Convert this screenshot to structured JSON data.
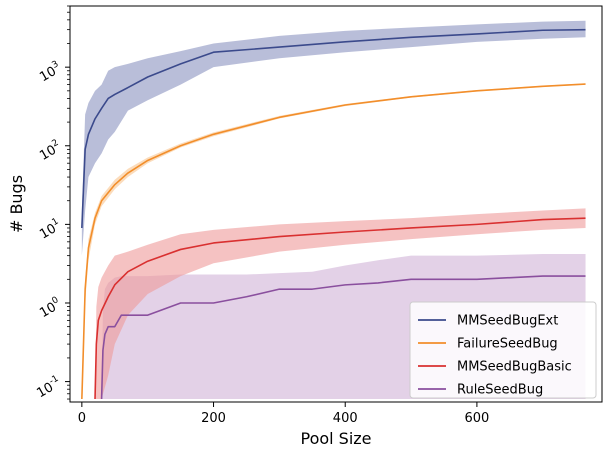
{
  "chart_data": {
    "type": "line",
    "xlabel": "Pool Size",
    "ylabel": "# Bugs",
    "xlim": [
      -18,
      790
    ],
    "ylim": [
      0.055,
      6000
    ],
    "yscale": "log",
    "x_ticks": [
      0,
      200,
      400,
      600
    ],
    "y_ticks": [
      {
        "base": "10",
        "exp": "-1",
        "value": 0.1
      },
      {
        "base": "10",
        "exp": "0",
        "value": 1
      },
      {
        "base": "10",
        "exp": "1",
        "value": 10
      },
      {
        "base": "10",
        "exp": "2",
        "value": 100
      },
      {
        "base": "10",
        "exp": "3",
        "value": 1000
      }
    ],
    "grid": false,
    "legend_position": "lower-right",
    "series": [
      {
        "name": "MMSeedBugExt",
        "color": "#3b4a8c",
        "band_color": "#8a93c0",
        "x": [
          0,
          5,
          10,
          20,
          30,
          40,
          50,
          70,
          100,
          150,
          200,
          300,
          400,
          500,
          600,
          700,
          765
        ],
        "y": [
          9,
          90,
          140,
          220,
          300,
          400,
          450,
          550,
          750,
          1100,
          1550,
          1800,
          2100,
          2400,
          2650,
          2950,
          3000
        ],
        "lower": [
          4,
          15,
          40,
          60,
          80,
          120,
          150,
          280,
          380,
          600,
          1000,
          1300,
          1550,
          1800,
          2100,
          2300,
          2400
        ],
        "upper": [
          15,
          250,
          350,
          500,
          600,
          900,
          1000,
          1100,
          1300,
          1600,
          2000,
          2500,
          2900,
          3200,
          3500,
          3800,
          3900
        ]
      },
      {
        "name": "FailureSeedBug",
        "color": "#f28e2b",
        "band_color": "#f8c48f",
        "x": [
          0,
          5,
          10,
          20,
          30,
          50,
          70,
          100,
          150,
          200,
          300,
          400,
          500,
          600,
          700,
          765
        ],
        "y": [
          0.06,
          1.5,
          5,
          12,
          20,
          32,
          45,
          65,
          100,
          140,
          230,
          330,
          420,
          500,
          570,
          610
        ],
        "lower": [
          0.06,
          1,
          3.5,
          10,
          17,
          28,
          40,
          60,
          95,
          132,
          222,
          320,
          410,
          490,
          560,
          600
        ],
        "upper": [
          0.06,
          2,
          6.5,
          14,
          23,
          37,
          51,
          71,
          107,
          148,
          240,
          340,
          430,
          512,
          582,
          622
        ]
      },
      {
        "name": "MMSeedBugBasic",
        "color": "#d93030",
        "band_color": "#ee9a9a",
        "x": [
          20,
          22,
          25,
          30,
          40,
          50,
          70,
          100,
          150,
          200,
          300,
          400,
          500,
          600,
          700,
          765
        ],
        "y": [
          0.06,
          0.3,
          0.6,
          0.8,
          1.2,
          1.7,
          2.5,
          3.4,
          4.8,
          5.8,
          7,
          8,
          9,
          10,
          11.5,
          12
        ],
        "lower": [
          0.06,
          0.06,
          0.06,
          0.06,
          0.12,
          0.3,
          0.7,
          1.3,
          2.2,
          3.2,
          4.5,
          5.5,
          6.5,
          7.5,
          8.5,
          9
        ],
        "upper": [
          0.06,
          0.9,
          1.6,
          2.1,
          3,
          4,
          4.5,
          5.5,
          7.5,
          8.5,
          10,
          11,
          12,
          13.5,
          15,
          16
        ]
      },
      {
        "name": "RuleSeedBug",
        "color": "#8a4f9e",
        "band_color": "#d0b3d7",
        "x": [
          30,
          32,
          35,
          40,
          50,
          60,
          100,
          150,
          200,
          250,
          300,
          350,
          400,
          450,
          500,
          600,
          700,
          765
        ],
        "y": [
          0.06,
          0.25,
          0.4,
          0.5,
          0.5,
          0.7,
          0.7,
          1,
          1,
          1.2,
          1.5,
          1.5,
          1.7,
          1.8,
          2,
          2,
          2.2,
          2.2
        ],
        "lower": [
          0.06,
          0.06,
          0.06,
          0.06,
          0.06,
          0.06,
          0.06,
          0.06,
          0.06,
          0.06,
          0.06,
          0.06,
          0.06,
          0.06,
          0.06,
          0.06,
          0.06,
          0.06
        ],
        "upper": [
          0.06,
          0.8,
          1.5,
          1.8,
          2.1,
          2.2,
          2.2,
          2.3,
          2.3,
          2.3,
          2.4,
          2.5,
          3,
          3.5,
          4,
          4,
          4.2,
          4.2
        ]
      }
    ]
  }
}
